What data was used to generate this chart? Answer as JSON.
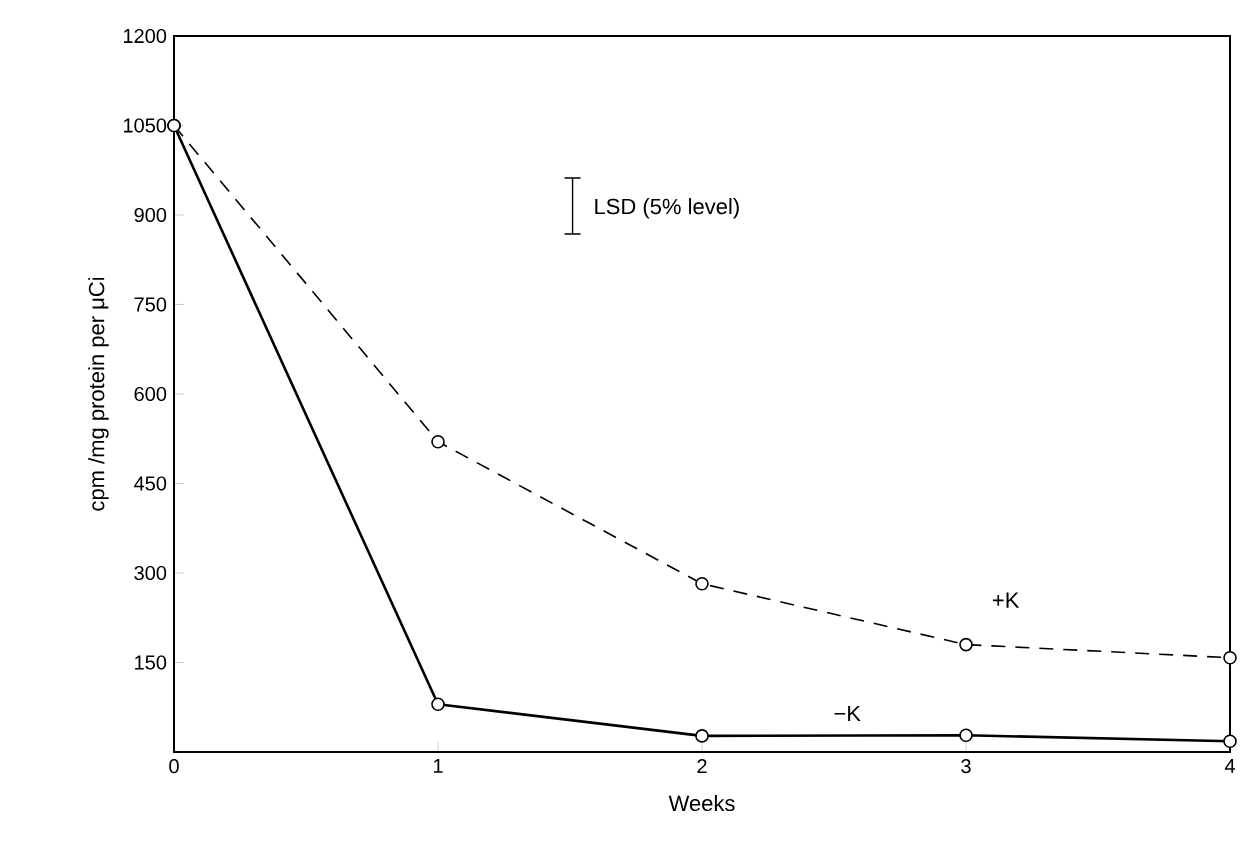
{
  "chart_data": {
    "type": "line",
    "xlabel": "Weeks",
    "ylabel": "cpm /mg protein per μCi",
    "x": [
      0,
      1,
      2,
      3,
      4
    ],
    "xlim": [
      0,
      4
    ],
    "xticks": [
      0,
      1,
      2,
      3,
      4
    ],
    "ylim": [
      0,
      1200
    ],
    "yticks": [
      150,
      300,
      450,
      600,
      750,
      900,
      1050,
      1200
    ],
    "marker": "circle",
    "annotations": [
      "LSD (5% level)"
    ],
    "series": [
      {
        "name": "+K",
        "color": "#000000",
        "line_style": "dashed",
        "values": [
          1050,
          520,
          282,
          180,
          158
        ]
      },
      {
        "name": "−K",
        "color": "#000000",
        "line_style": "solid",
        "values": [
          1050,
          80,
          27,
          28,
          18
        ]
      }
    ]
  }
}
